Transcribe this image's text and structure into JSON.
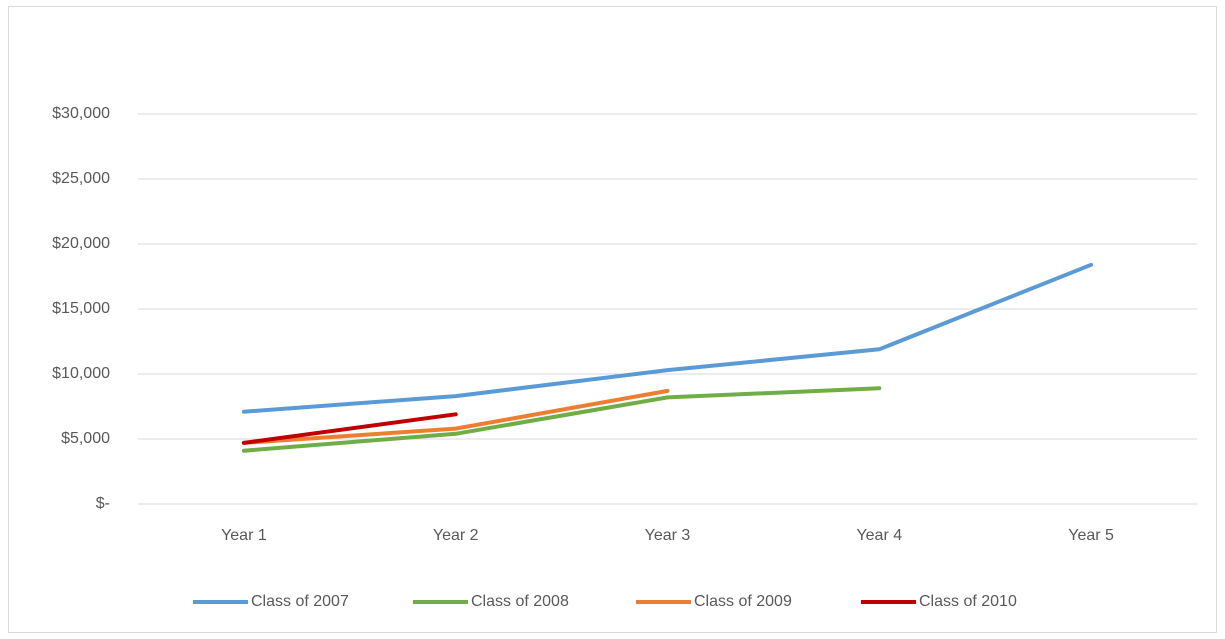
{
  "chart_data": {
    "type": "line",
    "categories": [
      "Year 1",
      "Year 2",
      "Year 3",
      "Year 4",
      "Year 5"
    ],
    "series": [
      {
        "name": "Class of 2007",
        "color": "#5b9bd5",
        "values": [
          7100,
          8300,
          10300,
          11900,
          18400
        ]
      },
      {
        "name": "Class of 2008",
        "color": "#70ad47",
        "values": [
          4100,
          5400,
          8200,
          8900,
          null
        ]
      },
      {
        "name": "Class of 2009",
        "color": "#ed7d31",
        "values": [
          4700,
          5800,
          8700,
          null,
          null
        ]
      },
      {
        "name": "Class of 2010",
        "color": "#c00000",
        "values": [
          4700,
          6900,
          null,
          null,
          null
        ]
      }
    ],
    "ylim": [
      0,
      30000
    ],
    "yticks": [
      {
        "value": 0,
        "label": "$-"
      },
      {
        "value": 5000,
        "label": "$5,000"
      },
      {
        "value": 10000,
        "label": "$10,000"
      },
      {
        "value": 15000,
        "label": "$15,000"
      },
      {
        "value": 20000,
        "label": "$20,000"
      },
      {
        "value": 25000,
        "label": "$25,000"
      },
      {
        "value": 30000,
        "label": "$30,000"
      }
    ],
    "grid": true,
    "legend": "bottom"
  }
}
